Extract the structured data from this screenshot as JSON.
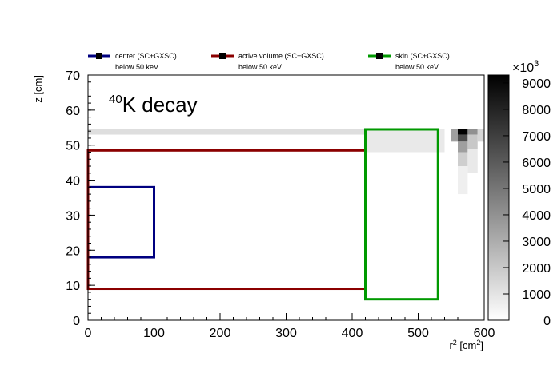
{
  "chart_data": {
    "type": "heatmap",
    "title": "",
    "annotation": {
      "sup": "40",
      "text": "K decay"
    },
    "xlabel": {
      "base": "r",
      "sup1": "2",
      "mid": " [cm",
      "sup2": "2",
      "end": "]"
    },
    "ylabel": "z [cm]",
    "xlim": [
      0,
      600
    ],
    "ylim": [
      0,
      70
    ],
    "x_ticks": [
      0,
      100,
      200,
      300,
      400,
      500,
      600
    ],
    "y_ticks": [
      0,
      10,
      20,
      30,
      40,
      50,
      60,
      70
    ],
    "colorbar": {
      "range": [
        0,
        9300
      ],
      "ticks": [
        0,
        1000,
        2000,
        3000,
        4000,
        5000,
        6000,
        7000,
        8000,
        9000
      ],
      "multiplier_base": "×10",
      "multiplier_exp": "3"
    },
    "heat_bands": [
      {
        "x": [
          0,
          420
        ],
        "y": [
          53,
          54.5
        ],
        "value": 1200
      },
      {
        "x": [
          420,
          540
        ],
        "y": [
          48,
          54.5
        ],
        "value": 800
      },
      {
        "x": [
          550,
          560
        ],
        "y": [
          51,
          54.5
        ],
        "value": 3500
      },
      {
        "x": [
          560,
          575
        ],
        "y": [
          53,
          54.5
        ],
        "value": 9300
      },
      {
        "x": [
          560,
          575
        ],
        "y": [
          51,
          53
        ],
        "value": 6500
      },
      {
        "x": [
          560,
          575
        ],
        "y": [
          48,
          51
        ],
        "value": 3500
      },
      {
        "x": [
          560,
          575
        ],
        "y": [
          44,
          48
        ],
        "value": 1800
      },
      {
        "x": [
          560,
          575
        ],
        "y": [
          36,
          44
        ],
        "value": 600
      },
      {
        "x": [
          575,
          590
        ],
        "y": [
          53,
          54.5
        ],
        "value": 4000
      },
      {
        "x": [
          575,
          590
        ],
        "y": [
          49,
          53
        ],
        "value": 2000
      },
      {
        "x": [
          575,
          590
        ],
        "y": [
          42,
          49
        ],
        "value": 800
      },
      {
        "x": [
          590,
          600
        ],
        "y": [
          51,
          54.5
        ],
        "value": 1500
      }
    ],
    "regions": [
      {
        "name": "center (SC+GXSC)",
        "subtitle": "below 50 keV",
        "color": "#000080",
        "x": [
          0,
          100
        ],
        "y": [
          18,
          38
        ]
      },
      {
        "name": "active volume (SC+GXSC)",
        "subtitle": "below 50 keV",
        "color": "#8b0000",
        "x": [
          0,
          420
        ],
        "y": [
          9,
          48.5
        ]
      },
      {
        "name": "skin (SC+GXSC)",
        "subtitle": "below 50 keV",
        "color": "#009900",
        "x": [
          420,
          530
        ],
        "y": [
          6,
          54.5
        ]
      }
    ]
  }
}
